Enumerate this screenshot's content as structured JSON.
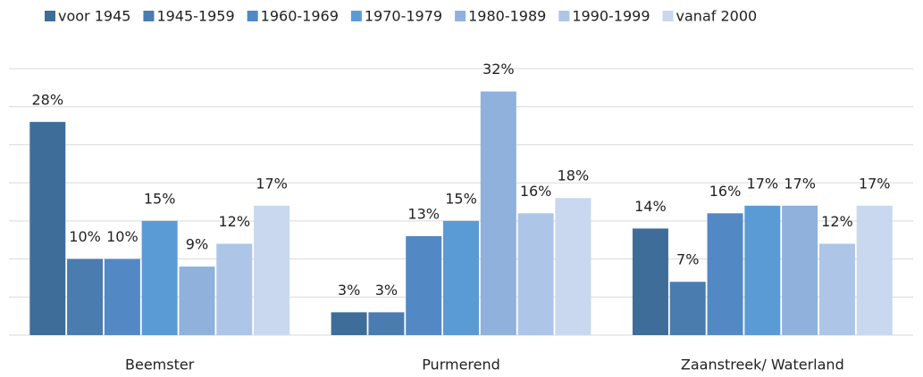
{
  "chart_data": {
    "type": "bar",
    "categories": [
      "Beemster",
      "Purmerend",
      "Zaanstreek/ Waterland"
    ],
    "series": [
      {
        "name": "voor 1945",
        "color": "#3f6d9a",
        "values": [
          28,
          3,
          14
        ],
        "value_labels": [
          "28%",
          "3%",
          "14%"
        ]
      },
      {
        "name": "1945-1959",
        "color": "#4a7cb0",
        "values": [
          10,
          3,
          7
        ],
        "value_labels": [
          "10%",
          "3%",
          "7%"
        ]
      },
      {
        "name": "1960-1969",
        "color": "#5289c4",
        "values": [
          10,
          13,
          16
        ],
        "value_labels": [
          "10%",
          "13%",
          "16%"
        ]
      },
      {
        "name": "1970-1979",
        "color": "#5b9bd5",
        "values": [
          15,
          15,
          17
        ],
        "value_labels": [
          "15%",
          "15%",
          "17%"
        ]
      },
      {
        "name": "1980-1989",
        "color": "#8fb1dc",
        "values": [
          9,
          32,
          17
        ],
        "value_labels": [
          "9%",
          "32%",
          "17%"
        ]
      },
      {
        "name": "1990-1999",
        "color": "#adc6e7",
        "values": [
          12,
          16,
          12
        ],
        "value_labels": [
          "12%",
          "16%",
          "12%"
        ]
      },
      {
        "name": "vanaf 2000",
        "color": "#c9d8ee",
        "values": [
          17,
          18,
          17
        ],
        "value_labels": [
          "17%",
          "18%",
          "17%"
        ]
      }
    ],
    "ylim": [
      0,
      35
    ],
    "yticks": [
      0,
      5,
      10,
      15,
      20,
      25,
      30,
      35
    ],
    "grid": true,
    "legend": "top"
  }
}
